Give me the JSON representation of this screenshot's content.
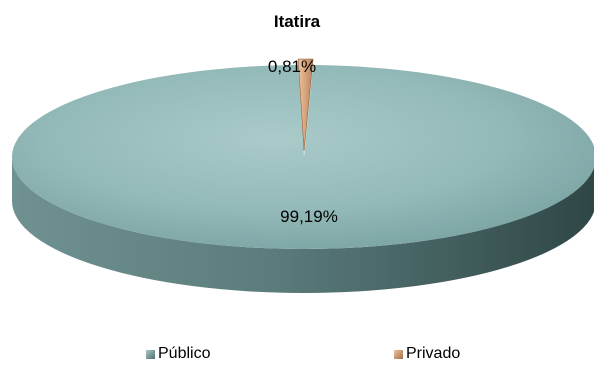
{
  "chart_data": {
    "type": "pie",
    "title": "Itatira",
    "slices": [
      {
        "name": "Público",
        "value": 99.19,
        "label": "99,19%",
        "color": "#8fb6b5"
      },
      {
        "name": "Privado",
        "value": 0.81,
        "label": "0,81%",
        "color": "#d9a57e"
      }
    ],
    "legend": {
      "placement": "bottom"
    }
  }
}
